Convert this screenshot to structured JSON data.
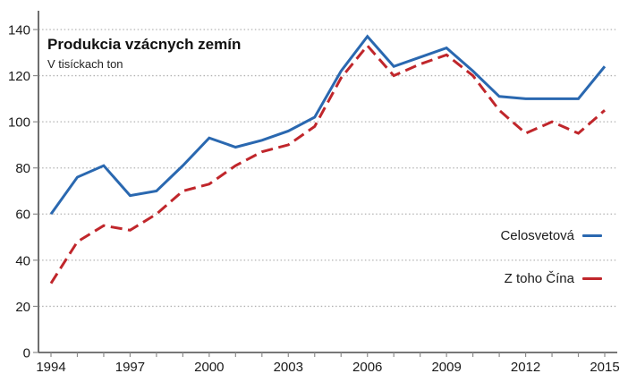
{
  "header": {
    "title": "Produkcia vzácnych zemín",
    "subtitle": "V tisíckach ton"
  },
  "legend": {
    "position": "right-middle",
    "items": [
      {
        "label": "Celosvetová",
        "color": "#2a68b0",
        "style": "solid"
      },
      {
        "label": "Z toho Čína",
        "color": "#c0262b",
        "style": "dashed"
      }
    ]
  },
  "axes": {
    "ytick_labels": [
      "0",
      "20",
      "40",
      "60",
      "80",
      "100",
      "120",
      "140"
    ],
    "xtick_labels": [
      "1994",
      "1997",
      "2000",
      "2003",
      "2006",
      "2009",
      "2012",
      "2015"
    ]
  },
  "colors": {
    "world_line": "#2a68b0",
    "china_line": "#c0262b",
    "axis": "#4a4a4a",
    "tick": "#8c8c8c",
    "grid": "#b3b3b3",
    "label_text": "#1a1a1a"
  },
  "chart_data": {
    "type": "line",
    "title": "Produkcia vzácnych zemín",
    "subtitle": "V tisíckach ton",
    "xlabel": "",
    "ylabel": "",
    "x": [
      1994,
      1995,
      1996,
      1997,
      1998,
      1999,
      2000,
      2001,
      2002,
      2003,
      2004,
      2005,
      2006,
      2007,
      2008,
      2009,
      2010,
      2011,
      2012,
      2013,
      2014,
      2015
    ],
    "series": [
      {
        "name": "Celosvetová",
        "style": "solid",
        "color": "#2a68b0",
        "values": [
          60,
          76,
          81,
          68,
          70,
          81,
          93,
          89,
          92,
          96,
          102,
          122,
          137,
          124,
          128,
          132,
          122,
          111,
          110,
          110,
          110,
          124
        ]
      },
      {
        "name": "Z toho Čína",
        "style": "dashed",
        "color": "#c0262b",
        "values": [
          30,
          48,
          55,
          53,
          60,
          70,
          73,
          81,
          87,
          90,
          98,
          119,
          133,
          120,
          125,
          129,
          120,
          105,
          95,
          100,
          95,
          105
        ]
      }
    ],
    "xlim": [
      1994,
      2015
    ],
    "ylim": [
      0,
      140
    ],
    "ytick_step": 20,
    "xtick_years": [
      1994,
      1997,
      2000,
      2003,
      2006,
      2009,
      2012,
      2015
    ],
    "minor_xticks_every_year": true,
    "grid": "dotted-horizontal",
    "legend_position": "right-middle"
  }
}
